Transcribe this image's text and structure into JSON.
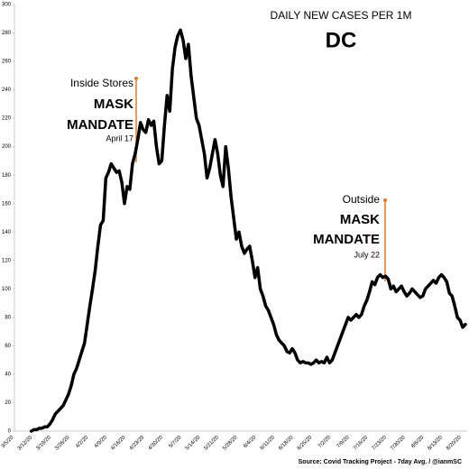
{
  "chart_data": {
    "type": "line",
    "title": "DAILY NEW CASES PER 1M",
    "subtitle": "DC",
    "source": "Source: Covid Tracking Project - 7day Avg. / @ianmSC",
    "annotations": [
      [
        "Inside Stores",
        "MASK",
        "MANDATE",
        "April 17"
      ],
      [
        "Outside",
        "MASK",
        "MANDATE",
        "July 22"
      ]
    ],
    "categories": [
      "3/5/20",
      null,
      null,
      null,
      null,
      null,
      null,
      "3/12/20",
      null,
      null,
      null,
      null,
      null,
      null,
      "3/19/20",
      null,
      null,
      null,
      null,
      null,
      null,
      "3/26/20",
      null,
      null,
      null,
      null,
      null,
      null,
      "4/2/20",
      null,
      null,
      null,
      null,
      null,
      null,
      "4/9/20",
      null,
      null,
      null,
      null,
      null,
      null,
      "4/16/20",
      null,
      null,
      null,
      null,
      null,
      null,
      "4/23/20",
      null,
      null,
      null,
      null,
      null,
      null,
      "4/30/20",
      null,
      null,
      null,
      null,
      null,
      null,
      "5/7/20",
      null,
      null,
      null,
      null,
      null,
      null,
      "5/14/20",
      null,
      null,
      null,
      null,
      null,
      null,
      "5/21/20",
      null,
      null,
      null,
      null,
      null,
      null,
      "5/28/20",
      null,
      null,
      null,
      null,
      null,
      null,
      "6/4/20",
      null,
      null,
      null,
      null,
      null,
      null,
      "6/11/20",
      null,
      null,
      null,
      null,
      null,
      null,
      "6/18/20",
      null,
      null,
      null,
      null,
      null,
      null,
      "6/25/20",
      null,
      null,
      null,
      null,
      null,
      null,
      "7/2/20",
      null,
      null,
      null,
      null,
      null,
      null,
      "7/9/20",
      null,
      null,
      null,
      null,
      null,
      null,
      "7/16/20",
      null,
      null,
      null,
      null,
      null,
      null,
      "7/23/20",
      null,
      null,
      null,
      null,
      null,
      null,
      "7/30/20",
      null,
      null,
      null,
      null,
      null,
      null,
      "8/6/20",
      null,
      null,
      null,
      null,
      null,
      null,
      "8/13/20",
      null,
      null,
      null,
      null,
      null,
      null,
      "8/20/20",
      null,
      null
    ],
    "values": [
      null,
      null,
      null,
      null,
      null,
      null,
      null,
      0,
      1,
      1,
      2,
      2,
      3,
      3,
      5,
      8,
      12,
      14,
      16,
      18,
      22,
      26,
      32,
      40,
      44,
      50,
      56,
      62,
      75,
      88,
      100,
      113,
      130,
      145,
      148,
      178,
      182,
      188,
      185,
      182,
      183,
      175,
      160,
      172,
      170,
      188,
      195,
      205,
      217,
      212,
      210,
      219,
      215,
      218,
      200,
      188,
      190,
      215,
      236,
      225,
      255,
      270,
      278,
      282,
      275,
      262,
      272,
      250,
      235,
      220,
      215,
      205,
      195,
      178,
      185,
      195,
      205,
      195,
      180,
      172,
      200,
      185,
      165,
      150,
      135,
      140,
      130,
      125,
      128,
      130,
      120,
      108,
      115,
      100,
      95,
      88,
      85,
      80,
      75,
      68,
      64,
      62,
      60,
      56,
      55,
      58,
      55,
      50,
      48,
      49,
      48,
      48,
      47,
      48,
      50,
      48,
      49,
      48,
      52,
      48,
      50,
      55,
      60,
      65,
      70,
      75,
      80,
      78,
      80,
      82,
      80,
      82,
      88,
      92,
      98,
      105,
      103,
      108,
      110,
      108,
      109,
      107,
      100,
      102,
      98,
      100,
      102,
      98,
      95,
      97,
      100,
      98,
      96,
      94,
      95,
      100,
      102,
      104,
      106,
      104,
      108,
      110,
      108,
      105,
      97,
      95,
      88,
      80,
      78,
      73,
      75
    ],
    "color": "#000000",
    "ylim": [
      0,
      300
    ],
    "yticks": [
      0,
      20,
      40,
      60,
      80,
      100,
      120,
      140,
      160,
      180,
      200,
      220,
      240,
      260,
      280,
      300
    ],
    "grid": false
  }
}
